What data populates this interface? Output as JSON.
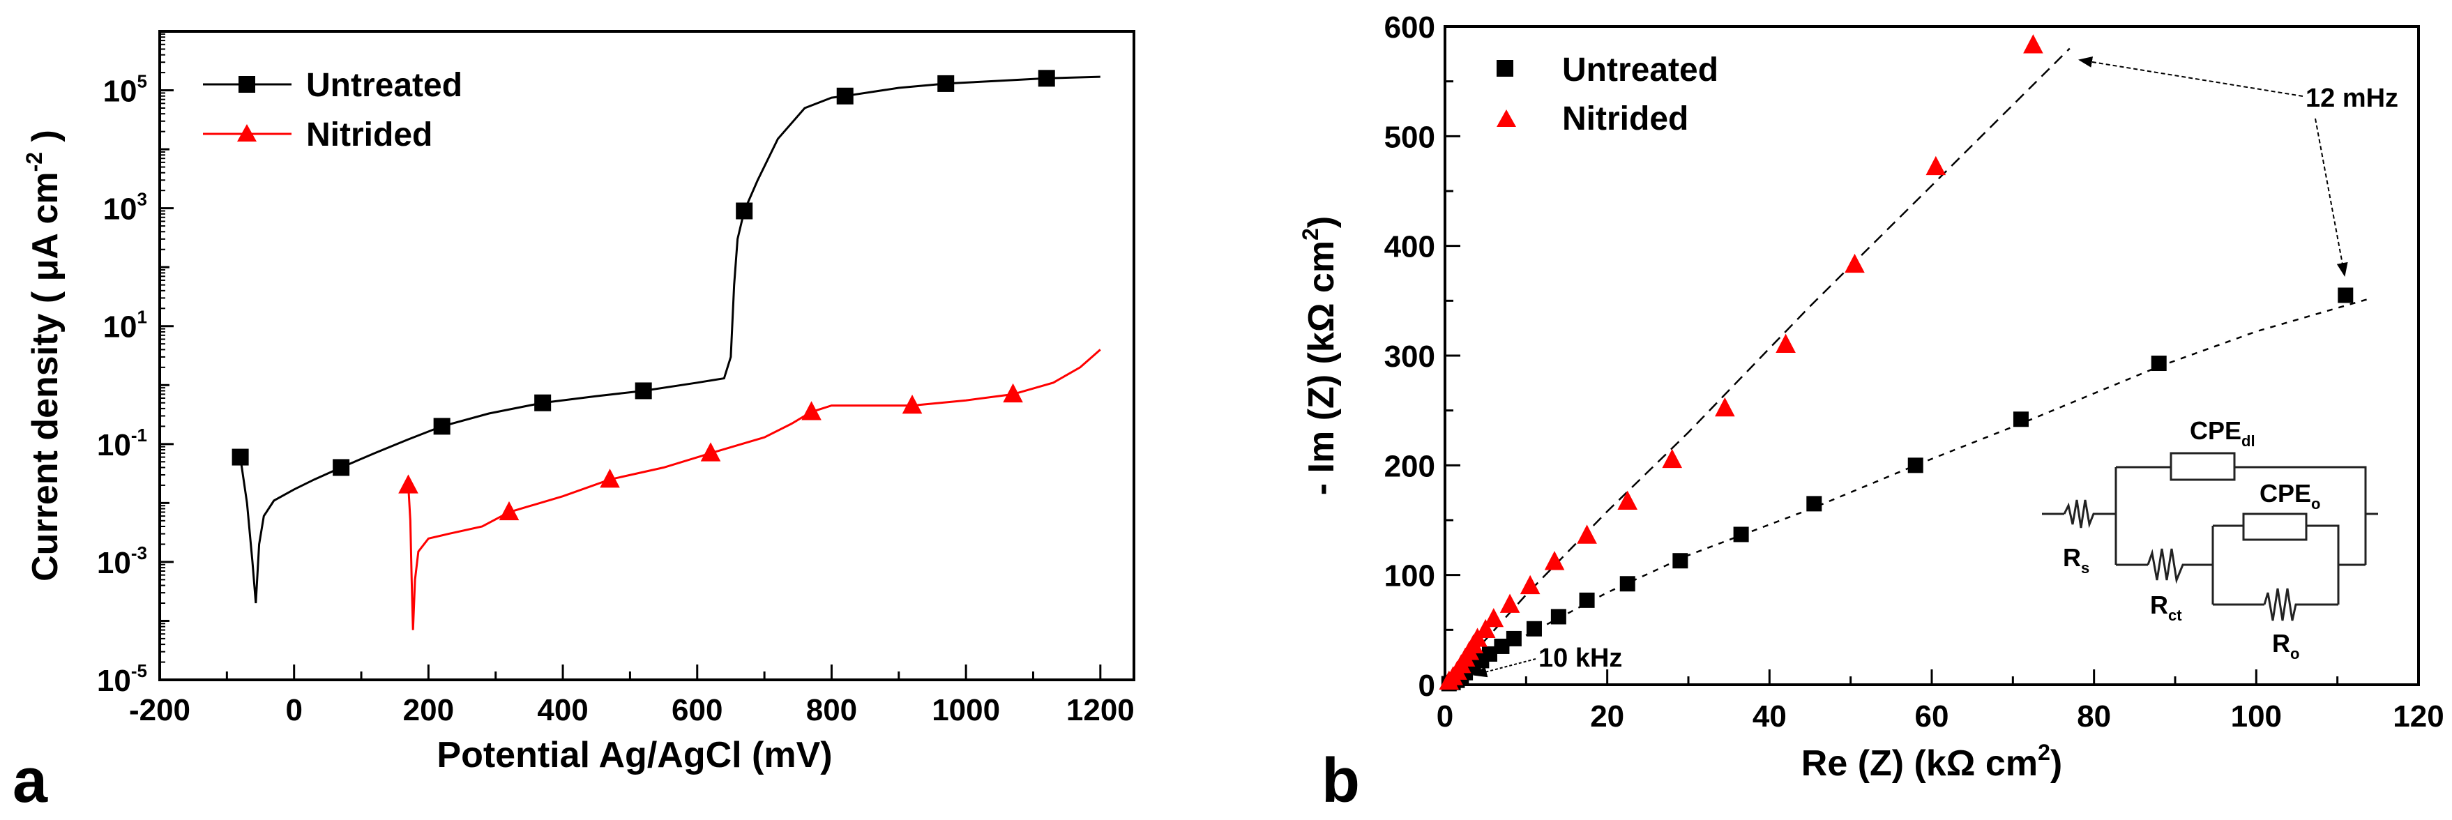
{
  "chart_data": [
    {
      "type": "line",
      "panel_label": "a",
      "xlabel": "Potential Ag/AgCl (mV)",
      "ylabel": {
        "text": "Current density ( μA cm",
        "sup": "-2",
        "end": " )"
      },
      "xlim": [
        -200,
        1250
      ],
      "ylim": [
        1e-05,
        1000000.0
      ],
      "yscale": "log",
      "x_ticks": [
        -200,
        0,
        200,
        400,
        600,
        800,
        1000,
        1200
      ],
      "x_tick_labels": [
        "-200",
        "0",
        "200",
        "400",
        "600",
        "800",
        "1000",
        "1200"
      ],
      "y_tick_labels": [
        {
          "base": "10",
          "exp": "-5",
          "value": 1e-05
        },
        {
          "base": "10",
          "exp": "-3",
          "value": 0.001
        },
        {
          "base": "10",
          "exp": "-1",
          "value": 0.1
        },
        {
          "base": "10",
          "exp": "1",
          "value": 10.0
        },
        {
          "base": "10",
          "exp": "3",
          "value": 1000.0
        },
        {
          "base": "10",
          "exp": "5",
          "value": 100000.0
        }
      ],
      "grid": false,
      "legend_position": "top-left",
      "series": [
        {
          "name": "Untreated",
          "color": "#000000",
          "marker": "square",
          "markers": [
            [
              -80,
              0.06
            ],
            [
              70,
              0.04
            ],
            [
              220,
              0.2
            ],
            [
              370,
              0.5
            ],
            [
              520,
              0.8
            ],
            [
              670,
              900
            ],
            [
              820,
              80000
            ],
            [
              970,
              130000
            ],
            [
              1120,
              160000
            ]
          ],
          "curve": [
            [
              -80,
              0.06
            ],
            [
              -70,
              0.01
            ],
            [
              -62,
              0.001
            ],
            [
              -57,
              0.0002
            ],
            [
              -52,
              0.002
            ],
            [
              -45,
              0.006
            ],
            [
              -30,
              0.011
            ],
            [
              0,
              0.017
            ],
            [
              30,
              0.025
            ],
            [
              70,
              0.04
            ],
            [
              120,
              0.07
            ],
            [
              170,
              0.12
            ],
            [
              220,
              0.2
            ],
            [
              290,
              0.33
            ],
            [
              370,
              0.5
            ],
            [
              450,
              0.65
            ],
            [
              520,
              0.8
            ],
            [
              600,
              1.1
            ],
            [
              640,
              1.3
            ],
            [
              650,
              3
            ],
            [
              655,
              50
            ],
            [
              660,
              300
            ],
            [
              670,
              900
            ],
            [
              690,
              3000
            ],
            [
              720,
              15000
            ],
            [
              760,
              50000
            ],
            [
              800,
              75000
            ],
            [
              820,
              80000
            ],
            [
              900,
              110000
            ],
            [
              970,
              130000
            ],
            [
              1050,
              145000
            ],
            [
              1120,
              160000
            ],
            [
              1200,
              170000
            ]
          ]
        },
        {
          "name": "Nitrided",
          "color": "#ff0000",
          "marker": "triangle",
          "markers": [
            [
              170,
              0.02
            ],
            [
              320,
              0.007
            ],
            [
              470,
              0.025
            ],
            [
              620,
              0.07
            ],
            [
              770,
              0.35
            ],
            [
              920,
              0.45
            ],
            [
              1070,
              0.7
            ]
          ],
          "curve": [
            [
              170,
              0.02
            ],
            [
              173,
              0.005
            ],
            [
              175,
              0.0005
            ],
            [
              177,
              7e-05
            ],
            [
              180,
              0.0005
            ],
            [
              185,
              0.0015
            ],
            [
              200,
              0.0025
            ],
            [
              230,
              0.003
            ],
            [
              280,
              0.004
            ],
            [
              320,
              0.007
            ],
            [
              400,
              0.013
            ],
            [
              470,
              0.025
            ],
            [
              550,
              0.04
            ],
            [
              620,
              0.07
            ],
            [
              700,
              0.13
            ],
            [
              740,
              0.22
            ],
            [
              770,
              0.35
            ],
            [
              800,
              0.45
            ],
            [
              920,
              0.45
            ],
            [
              1000,
              0.55
            ],
            [
              1070,
              0.7
            ],
            [
              1130,
              1.1
            ],
            [
              1170,
              2
            ],
            [
              1200,
              4
            ]
          ]
        }
      ]
    },
    {
      "type": "scatter",
      "panel_label": "b",
      "xlabel": {
        "text": "Re (Z) (kΩ cm",
        "sup": "2",
        "end": ")"
      },
      "ylabel": {
        "text": "- Im (Z) (kΩ cm",
        "sup": "2",
        "end": ")"
      },
      "xlim": [
        0,
        120
      ],
      "ylim": [
        0,
        600
      ],
      "x_ticks": [
        0,
        20,
        40,
        60,
        80,
        100,
        120
      ],
      "x_tick_labels": [
        "0",
        "20",
        "40",
        "60",
        "80",
        "100",
        "120"
      ],
      "y_ticks": [
        0,
        100,
        200,
        300,
        400,
        500,
        600
      ],
      "y_tick_labels": [
        "0",
        "100",
        "200",
        "300",
        "400",
        "500",
        "600"
      ],
      "grid": false,
      "legend_position": "top-left",
      "series": [
        {
          "name": "Untreated",
          "color": "#000000",
          "marker": "square",
          "points": [
            [
              111,
              355
            ],
            [
              88,
              293
            ],
            [
              71,
              242
            ],
            [
              58,
              200
            ],
            [
              45.5,
              165
            ],
            [
              36.5,
              137
            ],
            [
              29,
              113
            ],
            [
              22.5,
              92
            ],
            [
              17.5,
              77
            ],
            [
              14,
              62
            ],
            [
              11,
              51
            ],
            [
              8.5,
              42
            ],
            [
              7,
              35
            ],
            [
              5.5,
              28
            ],
            [
              4.5,
              22
            ],
            [
              3.5,
              16
            ],
            [
              2.5,
              11
            ],
            [
              2,
              7
            ],
            [
              1.5,
              4
            ],
            [
              1,
              2
            ],
            [
              0.5,
              1
            ]
          ],
          "fit": [
            [
              0,
              0
            ],
            [
              10,
              45
            ],
            [
              20,
              84
            ],
            [
              30,
              118
            ],
            [
              45,
              160
            ],
            [
              58,
              200
            ],
            [
              71,
              238
            ],
            [
              88,
              290
            ],
            [
              100,
              322
            ],
            [
              114,
              352
            ]
          ]
        },
        {
          "name": "Nitrided",
          "color": "#ff0000",
          "marker": "triangle",
          "points": [
            [
              72.5,
              583
            ],
            [
              60.5,
              472
            ],
            [
              50.5,
              383
            ],
            [
              42,
              310
            ],
            [
              34.5,
              252
            ],
            [
              28,
              205
            ],
            [
              22.5,
              167
            ],
            [
              17.5,
              136
            ],
            [
              13.5,
              112
            ],
            [
              10.5,
              90
            ],
            [
              8,
              73
            ],
            [
              6,
              60
            ],
            [
              5,
              50
            ],
            [
              4,
              42
            ],
            [
              3.5,
              36
            ],
            [
              3,
              30
            ],
            [
              2.5,
              24
            ],
            [
              2,
              18
            ],
            [
              1.5,
              12
            ],
            [
              1,
              7
            ],
            [
              0.5,
              3
            ]
          ],
          "fit": [
            [
              0,
              0
            ],
            [
              10,
              82
            ],
            [
              20,
              158
            ],
            [
              30,
              230
            ],
            [
              45,
              345
            ],
            [
              60,
              455
            ],
            [
              77,
              580
            ]
          ]
        }
      ],
      "annotations": [
        {
          "text": "12 mHz",
          "targets": [
            [
              76,
              575
            ],
            [
              111,
              365
            ]
          ]
        },
        {
          "text": "10 kHz",
          "targets": [
            [
              2.5,
              8
            ]
          ]
        }
      ],
      "inset_circuit": {
        "labels": [
          {
            "main": "CPE",
            "sub": "dl"
          },
          {
            "main": "CPE",
            "sub": "o"
          },
          {
            "main": "R",
            "sub": "s"
          },
          {
            "main": "R",
            "sub": "ct"
          },
          {
            "main": "R",
            "sub": "o"
          }
        ]
      }
    }
  ]
}
